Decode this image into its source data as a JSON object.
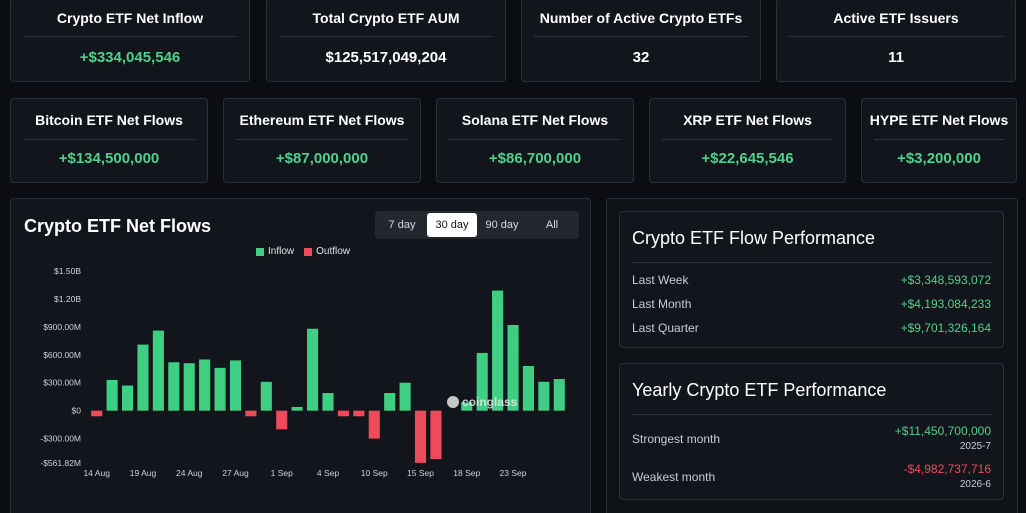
{
  "top_stats": [
    {
      "label": "Crypto ETF Net Inflow",
      "value": "+$334,045,546",
      "tone": "green"
    },
    {
      "label": "Total Crypto ETF AUM",
      "value": "$125,517,049,204",
      "tone": "white"
    },
    {
      "label": "Number of Active Crypto ETFs",
      "value": "32",
      "tone": "white"
    },
    {
      "label": "Active ETF Issuers",
      "value": "11",
      "tone": "white"
    }
  ],
  "asset_flows": [
    {
      "label": "Bitcoin ETF Net Flows",
      "value": "+$134,500,000"
    },
    {
      "label": "Ethereum ETF Net Flows",
      "value": "+$87,000,000"
    },
    {
      "label": "Solana ETF Net Flows",
      "value": "+$86,700,000"
    },
    {
      "label": "XRP ETF Net Flows",
      "value": "+$22,645,546"
    },
    {
      "label": "HYPE ETF Net Flows",
      "value": "+$3,200,000"
    }
  ],
  "chart_panel": {
    "title": "Crypto ETF Net Flows",
    "range_tabs": [
      "7 day",
      "30 day",
      "90 day",
      "All"
    ],
    "active_range": "30 day",
    "watermark": "coinglass"
  },
  "chart_data": {
    "type": "bar",
    "title": "Crypto ETF Net Flows",
    "legend": [
      {
        "name": "Inflow",
        "color": "#3ecf83"
      },
      {
        "name": "Outflow",
        "color": "#ef4a5c"
      }
    ],
    "y_ticks": [
      "$1.50B",
      "$1.20B",
      "$900.00M",
      "$600.00M",
      "$300.00M",
      "$0",
      "-$300.00M",
      "-$561.82M"
    ],
    "y_tick_values": [
      1500,
      1200,
      900,
      600,
      300,
      0,
      -300,
      -561.82
    ],
    "ylim": [
      -561.82,
      1500
    ],
    "unit": "$M",
    "x_tick_labels": [
      {
        "index": 0,
        "label": "14 Aug"
      },
      {
        "index": 3,
        "label": "19 Aug"
      },
      {
        "index": 6,
        "label": "24 Aug"
      },
      {
        "index": 9,
        "label": "27 Aug"
      },
      {
        "index": 12,
        "label": "1 Sep"
      },
      {
        "index": 15,
        "label": "4 Sep"
      },
      {
        "index": 18,
        "label": "10 Sep"
      },
      {
        "index": 21,
        "label": "15 Sep"
      },
      {
        "index": 24,
        "label": "18 Sep"
      },
      {
        "index": 27,
        "label": "23 Sep"
      }
    ],
    "values": [
      -60,
      330,
      270,
      710,
      860,
      520,
      510,
      550,
      460,
      540,
      -60,
      310,
      -200,
      40,
      880,
      190,
      -60,
      -60,
      -300,
      190,
      300,
      -560,
      -520,
      0,
      90,
      620,
      1290,
      920,
      480,
      310,
      340
    ]
  },
  "flow_performance": {
    "title": "Crypto ETF Flow Performance",
    "rows": [
      {
        "label": "Last Week",
        "value": "+$3,348,593,072"
      },
      {
        "label": "Last Month",
        "value": "+$4,193,084,233"
      },
      {
        "label": "Last Quarter",
        "value": "+$9,701,326,164"
      }
    ]
  },
  "yearly_performance": {
    "title": "Yearly Crypto ETF Performance",
    "strongest": {
      "label": "Strongest month",
      "value": "+$11,450,700,000",
      "date": "2025-7"
    },
    "weakest": {
      "label": "Weakest month",
      "value": "-$4,982,737,716",
      "date": "2026-6"
    }
  }
}
